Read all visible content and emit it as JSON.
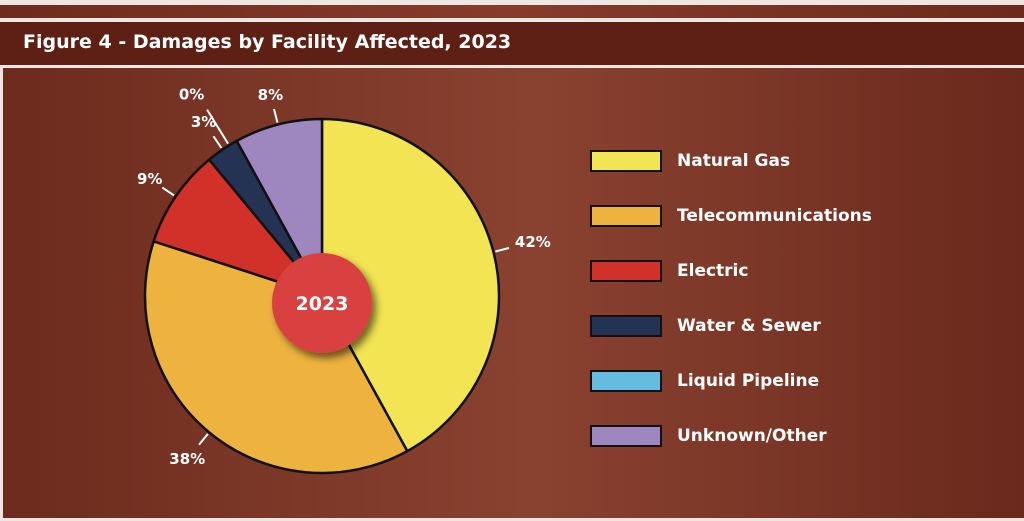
{
  "header": {
    "title": "Figure 4 - Damages by Facility Affected, 2023"
  },
  "chart_data": {
    "type": "pie",
    "title": "Figure 4 - Damages by Facility Affected, 2023",
    "center_label": "2023",
    "categories": [
      "Natural Gas",
      "Telecommunications",
      "Electric",
      "Water & Sewer",
      "Liquid Pipeline",
      "Unknown/Other"
    ],
    "values": [
      42,
      38,
      9,
      3,
      0,
      8
    ],
    "data_labels": [
      "42%",
      "38%",
      "9%",
      "3%",
      "0%",
      "8%"
    ],
    "colors": [
      "#f2e452",
      "#eeb33f",
      "#d23129",
      "#243254",
      "#64bde0",
      "#9e86bf"
    ],
    "center_color": "#d94040",
    "legend_position": "right"
  }
}
